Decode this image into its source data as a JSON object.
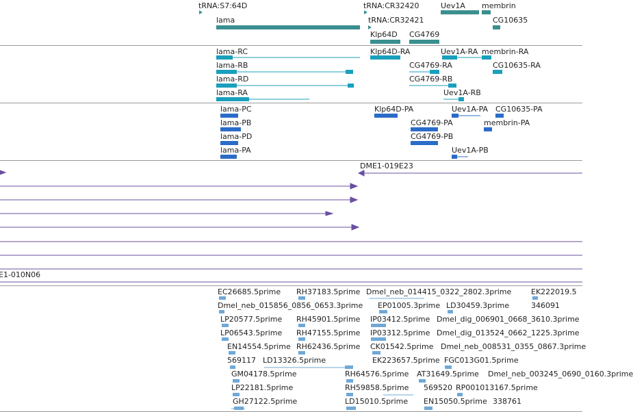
{
  "colors": {
    "gene": "#3a8f8f",
    "mrna": "#1a9fbd",
    "cds": "#2b6cc9",
    "clone": "#6a4fa0",
    "est": "#6fa8d6",
    "separator": "#9a9a9a",
    "text": "#222222"
  },
  "tracks": {
    "gene_track": {
      "features": [
        {
          "id": "g1",
          "label": "tRNA:S7:64D"
        },
        {
          "id": "g2",
          "label": "tRNA:CR32420"
        },
        {
          "id": "g3",
          "label": "Uev1A"
        },
        {
          "id": "g4",
          "label": "membrin"
        },
        {
          "id": "g5",
          "label": "lama"
        },
        {
          "id": "g6",
          "label": "tRNA:CR32421"
        },
        {
          "id": "g7",
          "label": "CG10635"
        },
        {
          "id": "g8",
          "label": "Klp64D"
        },
        {
          "id": "g9",
          "label": "CG4769"
        }
      ]
    },
    "mrna_track": {
      "features": [
        {
          "id": "m1",
          "label": "lama-RC"
        },
        {
          "id": "m2",
          "label": "Klp64D-RA"
        },
        {
          "id": "m3",
          "label": "Uev1A-RA"
        },
        {
          "id": "m4",
          "label": "membrin-RA"
        },
        {
          "id": "m5",
          "label": "lama-RB"
        },
        {
          "id": "m6",
          "label": "CG4769-RA"
        },
        {
          "id": "m7",
          "label": "CG10635-RA"
        },
        {
          "id": "m8",
          "label": "lama-RD"
        },
        {
          "id": "m9",
          "label": "CG4769-RB"
        },
        {
          "id": "m10",
          "label": "lama-RA"
        },
        {
          "id": "m11",
          "label": "Uev1A-RB"
        }
      ]
    },
    "cds_track": {
      "features": [
        {
          "id": "c1",
          "label": "lama-PC"
        },
        {
          "id": "c2",
          "label": "Klp64D-PA"
        },
        {
          "id": "c3",
          "label": "Uev1A-PA"
        },
        {
          "id": "c4",
          "label": "CG10635-PA"
        },
        {
          "id": "c5",
          "label": "lama-PB"
        },
        {
          "id": "c6",
          "label": "CG4769-PA"
        },
        {
          "id": "c7",
          "label": "membrin-PA"
        },
        {
          "id": "c8",
          "label": "lama-PD"
        },
        {
          "id": "c9",
          "label": "CG4769-PB"
        },
        {
          "id": "c10",
          "label": "lama-PA"
        },
        {
          "id": "c11",
          "label": "Uev1A-PB"
        }
      ]
    },
    "clone_track": {
      "features": [
        {
          "id": "k1",
          "label": "DME1-019E23"
        },
        {
          "id": "k2",
          "label": "E1-010N06"
        }
      ]
    },
    "est_track": {
      "features": [
        {
          "id": "e1",
          "label": "EC26685.5prime"
        },
        {
          "id": "e2",
          "label": "RH37183.5prime"
        },
        {
          "id": "e3",
          "label": "Dmel_neb_014415_0322_2802.3prime"
        },
        {
          "id": "e4",
          "label": "EK222019.5"
        },
        {
          "id": "e5",
          "label": "Dmel_neb_015856_0856_0653.3prime"
        },
        {
          "id": "e6",
          "label": "EP01005.3prime"
        },
        {
          "id": "e7",
          "label": "LD30459.3prime"
        },
        {
          "id": "e8",
          "label": "346091"
        },
        {
          "id": "e9",
          "label": "LP20577.5prime"
        },
        {
          "id": "e10",
          "label": "RH45901.5prime"
        },
        {
          "id": "e11",
          "label": "IP03412.5prime"
        },
        {
          "id": "e12",
          "label": "Dmel_dig_006901_0668_3610.3prime"
        },
        {
          "id": "e13",
          "label": "LP06543.5prime"
        },
        {
          "id": "e14",
          "label": "RH47155.5prime"
        },
        {
          "id": "e15",
          "label": "IP03312.5prime"
        },
        {
          "id": "e16",
          "label": "Dmel_dig_013524_0662_1225.3prime"
        },
        {
          "id": "e17",
          "label": "EN14554.5prime"
        },
        {
          "id": "e18",
          "label": "RH62436.5prime"
        },
        {
          "id": "e19",
          "label": "CK01542.5prime"
        },
        {
          "id": "e20",
          "label": "Dmel_neb_008531_0355_0867.3prime"
        },
        {
          "id": "e21",
          "label": "569117"
        },
        {
          "id": "e22",
          "label": "LD13326.5prime"
        },
        {
          "id": "e23",
          "label": "EK223657.5prime"
        },
        {
          "id": "e24",
          "label": "FGC013G01.5prime"
        },
        {
          "id": "e25",
          "label": "GM04178.5prime"
        },
        {
          "id": "e26",
          "label": "RH64576.5prime"
        },
        {
          "id": "e27",
          "label": "AT31649.5prime"
        },
        {
          "id": "e28",
          "label": "Dmel_neb_003245_0690_0160.3prime"
        },
        {
          "id": "e29",
          "label": "LP22181.5prime"
        },
        {
          "id": "e30",
          "label": "RH59858.5prime"
        },
        {
          "id": "e31",
          "label": "569520"
        },
        {
          "id": "e32",
          "label": "RP001013167.5prime"
        },
        {
          "id": "e33",
          "label": "GH27122.5prime"
        },
        {
          "id": "e34",
          "label": "LD15010.5prime"
        },
        {
          "id": "e35",
          "label": "EN15050.5prime"
        },
        {
          "id": "e36",
          "label": "338761"
        }
      ]
    }
  }
}
